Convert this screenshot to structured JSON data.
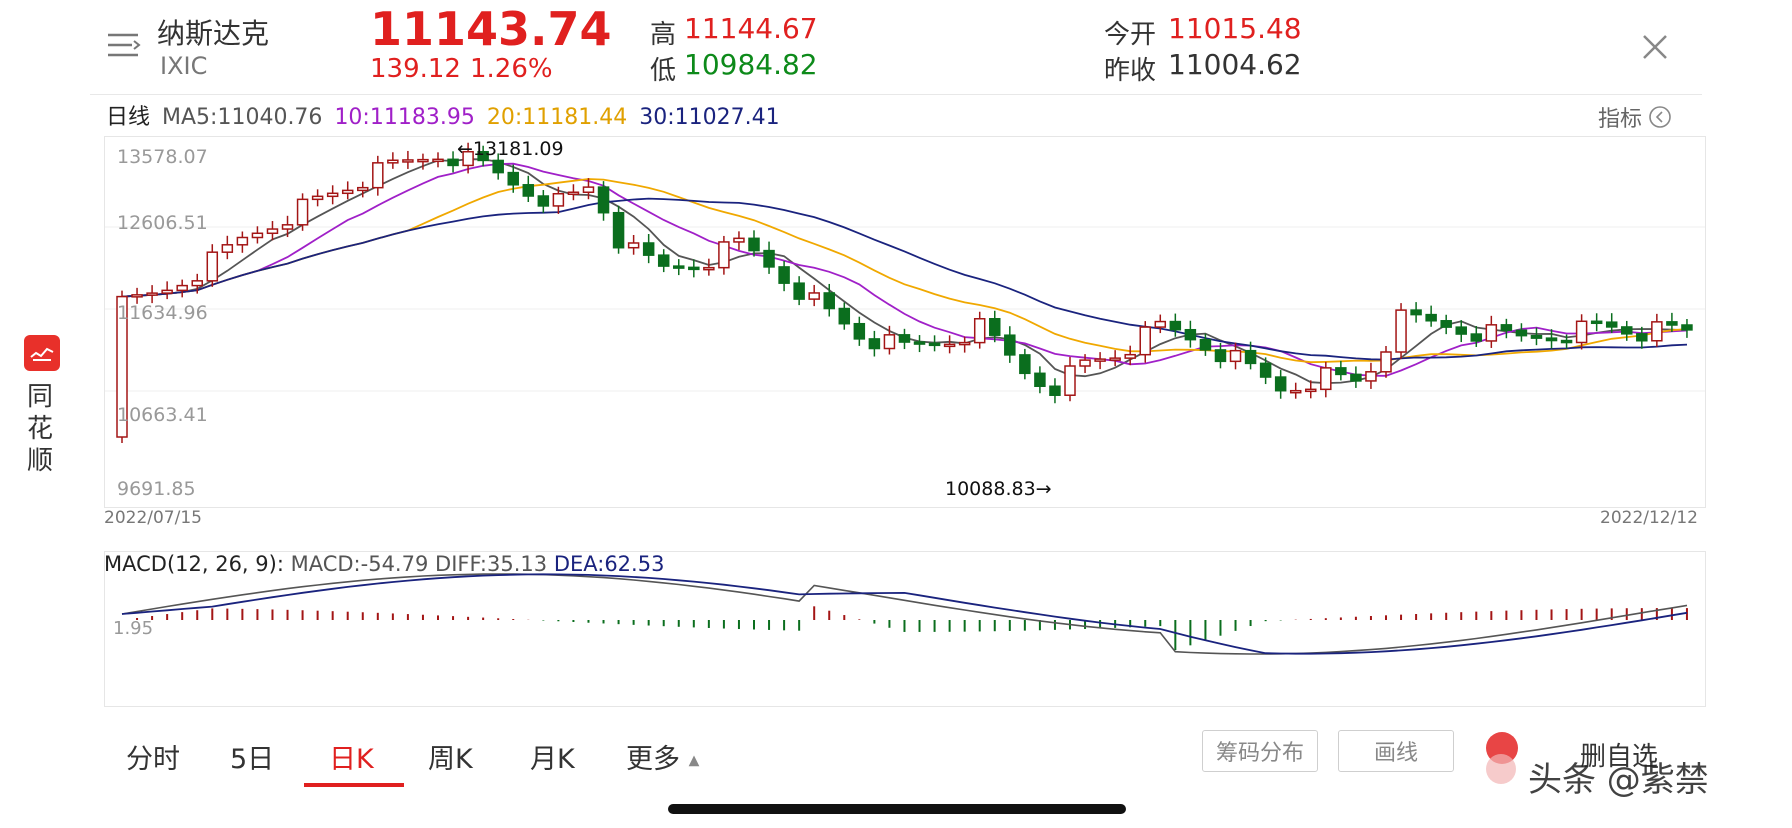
{
  "header": {
    "name": "纳斯达克",
    "code": "IXIC",
    "price": "11143.74",
    "change": "139.12",
    "change_pct": "1.26%",
    "high_label": "高",
    "high": "11144.67",
    "low_label": "低",
    "low": "10984.82",
    "open_label": "今开",
    "open": "11015.48",
    "prev_close_label": "昨收",
    "prev_close": "11004.62"
  },
  "sidebar": {
    "brand": "同花顺"
  },
  "ma_bar": {
    "period": "日线",
    "ma5": "MA5:11040.76",
    "ma10": "10:11183.95",
    "ma20": "20:11181.44",
    "ma30": "30:11027.41",
    "indicator": "指标"
  },
  "kline": {
    "y_ticks": [
      "13578.07",
      "12606.51",
      "11634.96",
      "10663.41",
      "9691.85"
    ],
    "max_marker": "←13181.09",
    "min_marker": "10088.83→",
    "date_start": "2022/07/15",
    "date_end": "2022/12/12"
  },
  "macd": {
    "title": "MACD(12, 26, 9):",
    "macd": "MACD:-54.79",
    "diff": "DIFF:35.13",
    "dea": "DEA:62.53",
    "tick": "1.95"
  },
  "tabs": [
    "分时",
    "5日",
    "日K",
    "周K",
    "月K",
    "更多"
  ],
  "active_tab": "日K",
  "buttons": {
    "chips": "筹码分布",
    "draw": "画线",
    "remove": "删自选"
  },
  "watermark": "头条 @紫禁",
  "colors": {
    "up": "#a31515",
    "down": "#0b6e1e",
    "ma5": "#555555",
    "ma10": "#a020c8",
    "ma20": "#f0a800",
    "ma30": "#1a237e",
    "accent": "#e0201f"
  }
}
